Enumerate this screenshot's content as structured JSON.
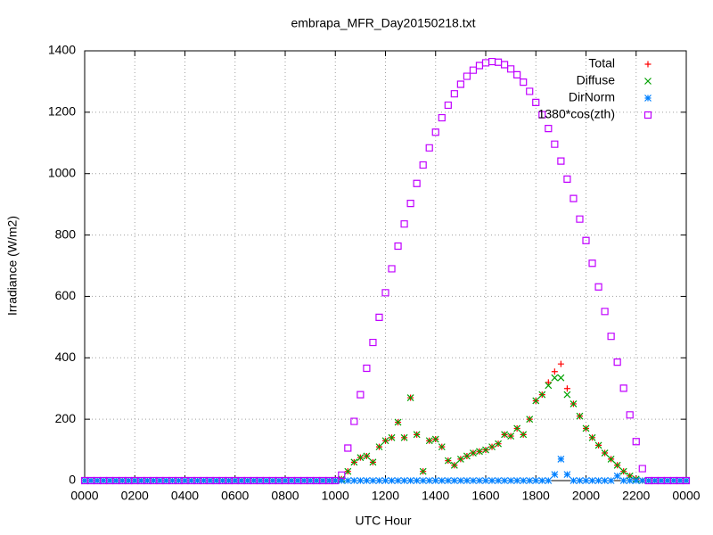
{
  "chart_data": {
    "type": "scatter",
    "title": "embrapa_MFR_Day20150218.txt",
    "x_label": "UTC Hour",
    "y_label": "Irradiance (W/m2)",
    "xlim": [
      0,
      24
    ],
    "ylim": [
      0,
      1400
    ],
    "xticks": [
      {
        "value": 0,
        "label": "0000"
      },
      {
        "value": 2,
        "label": "0200"
      },
      {
        "value": 4,
        "label": "0400"
      },
      {
        "value": 6,
        "label": "0600"
      },
      {
        "value": 8,
        "label": "0800"
      },
      {
        "value": 10,
        "label": "1000"
      },
      {
        "value": 12,
        "label": "1200"
      },
      {
        "value": 14,
        "label": "1400"
      },
      {
        "value": 16,
        "label": "1600"
      },
      {
        "value": 18,
        "label": "1800"
      },
      {
        "value": 20,
        "label": "2000"
      },
      {
        "value": 22,
        "label": "2200"
      },
      {
        "value": 24,
        "label": "0000"
      }
    ],
    "yticks": [
      0,
      200,
      400,
      600,
      800,
      1000,
      1200,
      1400
    ],
    "grid": true,
    "legend": "top-right",
    "x": [
      0,
      0.25,
      0.5,
      0.75,
      1,
      1.25,
      1.5,
      1.75,
      2,
      2.25,
      2.5,
      2.75,
      3,
      3.25,
      3.5,
      3.75,
      4,
      4.25,
      4.5,
      4.75,
      5,
      5.25,
      5.5,
      5.75,
      6,
      6.25,
      6.5,
      6.75,
      7,
      7.25,
      7.5,
      7.75,
      8,
      8.25,
      8.5,
      8.75,
      9,
      9.25,
      9.5,
      9.75,
      10,
      10.25,
      10.5,
      10.75,
      11,
      11.25,
      11.5,
      11.75,
      12,
      12.25,
      12.5,
      12.75,
      13,
      13.25,
      13.5,
      13.75,
      14,
      14.25,
      14.5,
      14.75,
      15,
      15.25,
      15.5,
      15.75,
      16,
      16.25,
      16.5,
      16.75,
      17,
      17.25,
      17.5,
      17.75,
      18,
      18.25,
      18.5,
      18.75,
      19,
      19.25,
      19.5,
      19.75,
      20,
      20.25,
      20.5,
      20.75,
      21,
      21.25,
      21.5,
      21.75,
      22,
      22.25,
      22.5,
      22.75,
      23,
      23.25,
      23.5,
      23.75,
      24
    ],
    "series": [
      {
        "name": "Total",
        "color": "#ff0000",
        "marker": "plus",
        "values": [
          0,
          0,
          0,
          0,
          0,
          0,
          0,
          0,
          0,
          0,
          0,
          0,
          0,
          0,
          0,
          0,
          0,
          0,
          0,
          0,
          0,
          0,
          0,
          0,
          0,
          0,
          0,
          0,
          0,
          0,
          0,
          0,
          0,
          0,
          0,
          0,
          0,
          0,
          0,
          0,
          0,
          5,
          30,
          60,
          75,
          80,
          60,
          110,
          130,
          140,
          190,
          140,
          270,
          150,
          30,
          130,
          135,
          110,
          65,
          50,
          70,
          80,
          90,
          95,
          100,
          110,
          120,
          150,
          145,
          170,
          150,
          200,
          260,
          280,
          320,
          355,
          380,
          300,
          250,
          210,
          170,
          140,
          115,
          90,
          70,
          50,
          30,
          15,
          5,
          0,
          0,
          0,
          0,
          0,
          0,
          0,
          0
        ]
      },
      {
        "name": "Diffuse",
        "color": "#00a000",
        "marker": "cross",
        "values": [
          0,
          0,
          0,
          0,
          0,
          0,
          0,
          0,
          0,
          0,
          0,
          0,
          0,
          0,
          0,
          0,
          0,
          0,
          0,
          0,
          0,
          0,
          0,
          0,
          0,
          0,
          0,
          0,
          0,
          0,
          0,
          0,
          0,
          0,
          0,
          0,
          0,
          0,
          0,
          0,
          0,
          5,
          30,
          60,
          75,
          80,
          60,
          110,
          130,
          140,
          190,
          140,
          270,
          150,
          30,
          130,
          135,
          110,
          65,
          50,
          70,
          80,
          90,
          95,
          100,
          110,
          120,
          150,
          145,
          170,
          150,
          200,
          260,
          280,
          310,
          335,
          335,
          280,
          250,
          210,
          170,
          140,
          115,
          90,
          70,
          50,
          30,
          15,
          5,
          0,
          0,
          0,
          0,
          0,
          0,
          0,
          0
        ]
      },
      {
        "name": "DirNorm",
        "color": "#0080ff",
        "marker": "star",
        "values": [
          0,
          0,
          0,
          0,
          0,
          0,
          0,
          0,
          0,
          0,
          0,
          0,
          0,
          0,
          0,
          0,
          0,
          0,
          0,
          0,
          0,
          0,
          0,
          0,
          0,
          0,
          0,
          0,
          0,
          0,
          0,
          0,
          0,
          0,
          0,
          0,
          0,
          0,
          0,
          0,
          0,
          0,
          0,
          0,
          0,
          0,
          0,
          0,
          0,
          0,
          0,
          0,
          0,
          0,
          0,
          0,
          0,
          0,
          0,
          0,
          0,
          0,
          0,
          0,
          0,
          0,
          0,
          0,
          0,
          0,
          0,
          0,
          0,
          0,
          0,
          20,
          70,
          20,
          0,
          0,
          0,
          0,
          0,
          0,
          0,
          15,
          0,
          0,
          0,
          0,
          0,
          0,
          0,
          0,
          0,
          0,
          0
        ]
      },
      {
        "name": "1380*cos(zth)",
        "color": "#c000ff",
        "marker": "square",
        "values": [
          0,
          0,
          0,
          0,
          0,
          0,
          0,
          0,
          0,
          0,
          0,
          0,
          0,
          0,
          0,
          0,
          0,
          0,
          0,
          0,
          0,
          0,
          0,
          0,
          0,
          0,
          0,
          0,
          0,
          0,
          0,
          0,
          0,
          0,
          0,
          0,
          0,
          0,
          0,
          0,
          0,
          18,
          106,
          193,
          280,
          366,
          450,
          532,
          612,
          690,
          764,
          836,
          903,
          968,
          1028,
          1084,
          1135,
          1182,
          1223,
          1260,
          1291,
          1317,
          1337,
          1352,
          1361,
          1365,
          1363,
          1355,
          1341,
          1322,
          1298,
          1268,
          1232,
          1192,
          1147,
          1096,
          1041,
          982,
          919,
          852,
          782,
          708,
          631,
          551,
          470,
          386,
          301,
          214,
          127,
          39,
          0,
          0,
          0,
          0,
          0,
          0,
          0
        ]
      }
    ]
  }
}
